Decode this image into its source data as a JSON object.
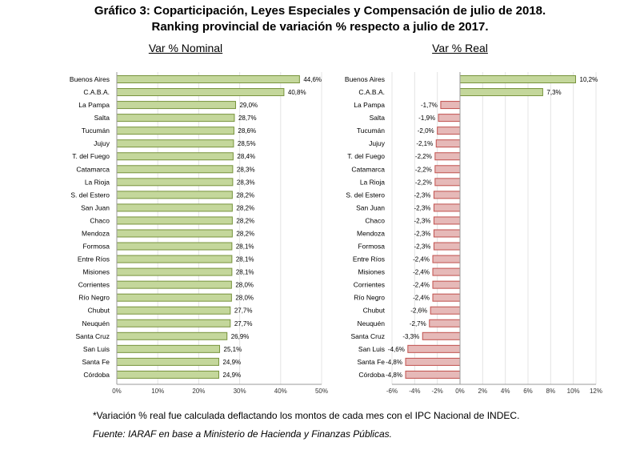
{
  "title_line1": "Gráfico 3: Coparticipación, Leyes Especiales y Compensación de julio de 2018.",
  "title_line2": "Ranking provincial de variación % respecto a julio de 2017.",
  "footnote": "*Variación % real fue calculada deflactando los montos de cada mes con el IPC Nacional de INDEC.",
  "source": "Fuente: IARAF en base a Ministerio de Hacienda y Finanzas Públicas.",
  "colors": {
    "positive_fill": "#c4d79b",
    "positive_stroke": "#77933c",
    "negative_fill": "#e6b9b8",
    "negative_stroke": "#c0504d"
  },
  "chart_data": [
    {
      "type": "bar",
      "orientation": "horizontal",
      "title": "Var % Nominal",
      "categories": [
        "Buenos Aires",
        "C.A.B.A.",
        "La Pampa",
        "Salta",
        "Tucumán",
        "Jujuy",
        "T. del Fuego",
        "Catamarca",
        "La Rioja",
        "S. del Estero",
        "San Juan",
        "Chaco",
        "Mendoza",
        "Formosa",
        "Entre Ríos",
        "Misiones",
        "Corrientes",
        "Río Negro",
        "Chubut",
        "Neuquén",
        "Santa Cruz",
        "San Luis",
        "Santa Fe",
        "Córdoba"
      ],
      "values": [
        44.6,
        40.8,
        29.0,
        28.7,
        28.6,
        28.5,
        28.4,
        28.3,
        28.3,
        28.2,
        28.2,
        28.2,
        28.2,
        28.1,
        28.1,
        28.1,
        28.0,
        28.0,
        27.7,
        27.7,
        26.9,
        25.1,
        24.9,
        24.9
      ],
      "data_labels": [
        "44,6%",
        "40,8%",
        "29,0%",
        "28,7%",
        "28,6%",
        "28,5%",
        "28,4%",
        "28,3%",
        "28,3%",
        "28,2%",
        "28,2%",
        "28,2%",
        "28,2%",
        "28,1%",
        "28,1%",
        "28,1%",
        "28,0%",
        "28,0%",
        "27,7%",
        "27,7%",
        "26,9%",
        "25,1%",
        "24,9%",
        "24,9%"
      ],
      "xlim": [
        0,
        50
      ],
      "ticks": [
        0,
        10,
        20,
        30,
        40,
        50
      ],
      "tick_labels": [
        "0%",
        "10%",
        "20%",
        "30%",
        "40%",
        "50%"
      ],
      "grid": true
    },
    {
      "type": "bar",
      "orientation": "horizontal",
      "title": "Var % Real",
      "categories": [
        "Buenos Aires",
        "C.A.B.A.",
        "La Pampa",
        "Salta",
        "Tucumán",
        "Jujuy",
        "T. del Fuego",
        "Catamarca",
        "La Rioja",
        "S. del Estero",
        "San Juan",
        "Chaco",
        "Mendoza",
        "Formosa",
        "Entre Ríos",
        "Misiones",
        "Corrientes",
        "Río Negro",
        "Chubut",
        "Neuquén",
        "Santa Cruz",
        "San Luis",
        "Santa Fe",
        "Córdoba"
      ],
      "values": [
        10.2,
        7.3,
        -1.7,
        -1.9,
        -2.0,
        -2.1,
        -2.2,
        -2.2,
        -2.2,
        -2.3,
        -2.3,
        -2.3,
        -2.3,
        -2.3,
        -2.4,
        -2.4,
        -2.4,
        -2.4,
        -2.6,
        -2.7,
        -3.3,
        -4.6,
        -4.8,
        -4.8
      ],
      "data_labels": [
        "10,2%",
        "7,3%",
        "-1,7%",
        "-1,9%",
        "-2,0%",
        "-2,1%",
        "-2,2%",
        "-2,2%",
        "-2,2%",
        "-2,3%",
        "-2,3%",
        "-2,3%",
        "-2,3%",
        "-2,3%",
        "-2,4%",
        "-2,4%",
        "-2,4%",
        "-2,4%",
        "-2,6%",
        "-2,7%",
        "-3,3%",
        "-4,6%",
        "-4,8%",
        "-4,8%"
      ],
      "xlim": [
        -6,
        12
      ],
      "ticks": [
        -6,
        -4,
        -2,
        0,
        2,
        4,
        6,
        8,
        10,
        12
      ],
      "tick_labels": [
        "-6%",
        "-4%",
        "-2%",
        "0%",
        "2%",
        "4%",
        "6%",
        "8%",
        "10%",
        "12%"
      ],
      "grid": true
    }
  ]
}
